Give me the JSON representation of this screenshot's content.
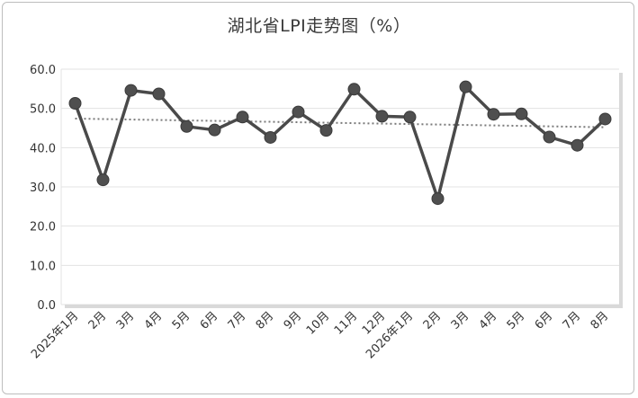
{
  "chart_data": {
    "type": "line",
    "title": "湖北省LPI走势图（%）",
    "categories": [
      "2025年1月",
      "2月",
      "3月",
      "4月",
      "5月",
      "6月",
      "7月",
      "8月",
      "9月",
      "10月",
      "11月",
      "12月",
      "2026年1月",
      "2月",
      "3月",
      "4月",
      "5月",
      "6月",
      "7月",
      "8月"
    ],
    "series": [
      {
        "values": [
          51.3,
          31.8,
          54.6,
          53.7,
          45.4,
          44.5,
          47.8,
          42.6,
          49.1,
          44.4,
          54.9,
          48.0,
          47.8,
          27.0,
          55.5,
          48.5,
          48.6,
          42.7,
          40.6,
          47.3
        ]
      }
    ],
    "trendline": {
      "style": "dotted",
      "start": 47.4,
      "end": 45.2
    },
    "ylim": [
      0,
      60
    ],
    "yticks": [
      "0.0",
      "10.0",
      "20.0",
      "30.0",
      "40.0",
      "50.0",
      "60.0"
    ],
    "xlabel": "",
    "ylabel": "",
    "grid": true,
    "legend": "none",
    "colors": {
      "line": "#4a4a4a",
      "marker": "#4f4f4f",
      "trend": "#7a7a7a",
      "grid": "#e3e3e3"
    }
  }
}
